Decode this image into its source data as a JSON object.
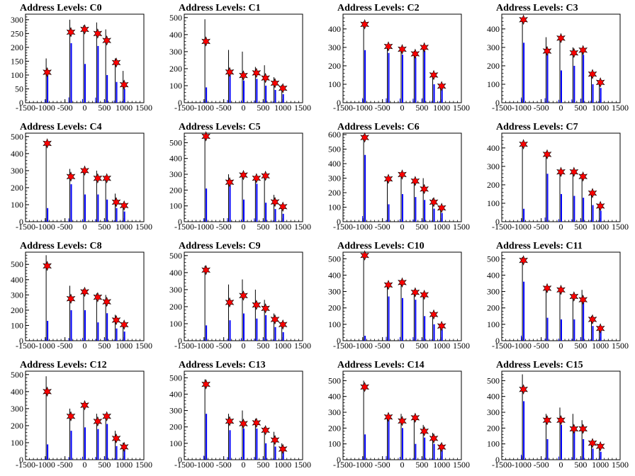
{
  "colors": {
    "histogram": "#0000ff",
    "spike": "#000000",
    "marker": "#ff0000",
    "axis": "#000000"
  },
  "chart_data": [
    {
      "type": "bar",
      "title": "Address Levels: C0",
      "xlim": [
        -1500,
        1500
      ],
      "ylim": [
        0,
        320
      ],
      "yticks": [
        0,
        50,
        100,
        150,
        200,
        250,
        300
      ],
      "xticks": [
        -1500,
        -1000,
        -500,
        0,
        500,
        1000,
        1500
      ],
      "peaks": [
        {
          "x": -950,
          "bar": 100,
          "spike": 160,
          "marker": 110
        },
        {
          "x": -350,
          "bar": 215,
          "spike": 300,
          "marker": 255
        },
        {
          "x": 0,
          "bar": 140,
          "spike": 280,
          "marker": 265
        },
        {
          "x": 330,
          "bar": 205,
          "spike": 290,
          "marker": 250
        },
        {
          "x": 560,
          "bar": 100,
          "spike": 265,
          "marker": 225
        },
        {
          "x": 800,
          "bar": 75,
          "spike": 160,
          "marker": 145
        },
        {
          "x": 1000,
          "bar": 50,
          "spike": 115,
          "marker": 65
        }
      ]
    },
    {
      "type": "bar",
      "title": "Address Levels: C1",
      "xlim": [
        -1500,
        1500
      ],
      "ylim": [
        0,
        520
      ],
      "yticks": [
        0,
        100,
        200,
        300,
        400,
        500
      ],
      "xticks": [
        -1500,
        -1000,
        -500,
        0,
        500,
        1000,
        1500
      ],
      "peaks": [
        {
          "x": -950,
          "bar": 90,
          "spike": 490,
          "marker": 360
        },
        {
          "x": -350,
          "bar": 180,
          "spike": 310,
          "marker": 180
        },
        {
          "x": 0,
          "bar": 130,
          "spike": 300,
          "marker": 160
        },
        {
          "x": 330,
          "bar": 140,
          "spike": 210,
          "marker": 175
        },
        {
          "x": 560,
          "bar": 100,
          "spike": 220,
          "marker": 145
        },
        {
          "x": 800,
          "bar": 75,
          "spike": 150,
          "marker": 115
        },
        {
          "x": 1000,
          "bar": 50,
          "spike": 105,
          "marker": 85
        }
      ]
    },
    {
      "type": "bar",
      "title": "Address Levels: C2",
      "xlim": [
        -1500,
        1500
      ],
      "ylim": [
        0,
        480
      ],
      "yticks": [
        0,
        100,
        200,
        300,
        400
      ],
      "xticks": [
        -1500,
        -1000,
        -500,
        0,
        500,
        1000,
        1500
      ],
      "peaks": [
        {
          "x": -950,
          "bar": 285,
          "spike": 440,
          "marker": 425
        },
        {
          "x": -350,
          "bar": 270,
          "spike": 310,
          "marker": 305
        },
        {
          "x": 0,
          "bar": 260,
          "spike": 295,
          "marker": 290
        },
        {
          "x": 330,
          "bar": 245,
          "spike": 280,
          "marker": 265
        },
        {
          "x": 560,
          "bar": 280,
          "spike": 310,
          "marker": 300
        },
        {
          "x": 800,
          "bar": 100,
          "spike": 160,
          "marker": 150
        },
        {
          "x": 1000,
          "bar": 80,
          "spike": 100,
          "marker": 90
        }
      ]
    },
    {
      "type": "bar",
      "title": "Address Levels: C3",
      "xlim": [
        -1500,
        1500
      ],
      "ylim": [
        0,
        480
      ],
      "yticks": [
        0,
        100,
        200,
        300,
        400
      ],
      "xticks": [
        -1500,
        -1000,
        -500,
        0,
        500,
        1000,
        1500
      ],
      "peaks": [
        {
          "x": -950,
          "bar": 325,
          "spike": 460,
          "marker": 450
        },
        {
          "x": -350,
          "bar": 280,
          "spike": 355,
          "marker": 280
        },
        {
          "x": 0,
          "bar": 175,
          "spike": 360,
          "marker": 350
        },
        {
          "x": 330,
          "bar": 200,
          "spike": 300,
          "marker": 270
        },
        {
          "x": 560,
          "bar": 260,
          "spike": 295,
          "marker": 285
        },
        {
          "x": 800,
          "bar": 100,
          "spike": 165,
          "marker": 155
        },
        {
          "x": 1000,
          "bar": 80,
          "spike": 120,
          "marker": 110
        }
      ]
    },
    {
      "type": "bar",
      "title": "Address Levels: C4",
      "xlim": [
        -1500,
        1500
      ],
      "ylim": [
        0,
        520
      ],
      "yticks": [
        0,
        100,
        200,
        300,
        400,
        500
      ],
      "xticks": [
        -1500,
        -1000,
        -500,
        0,
        500,
        1000,
        1500
      ],
      "peaks": [
        {
          "x": -950,
          "bar": 80,
          "spike": 470,
          "marker": 460
        },
        {
          "x": -350,
          "bar": 220,
          "spike": 310,
          "marker": 265
        },
        {
          "x": 0,
          "bar": 160,
          "spike": 310,
          "marker": 300
        },
        {
          "x": 330,
          "bar": 160,
          "spike": 300,
          "marker": 255
        },
        {
          "x": 560,
          "bar": 130,
          "spike": 270,
          "marker": 255
        },
        {
          "x": 800,
          "bar": 80,
          "spike": 165,
          "marker": 115
        },
        {
          "x": 1000,
          "bar": 60,
          "spike": 110,
          "marker": 95
        }
      ]
    },
    {
      "type": "bar",
      "title": "Address Levels: C5",
      "xlim": [
        -1500,
        1500
      ],
      "ylim": [
        0,
        560
      ],
      "yticks": [
        0,
        100,
        200,
        300,
        400,
        500
      ],
      "xticks": [
        -1500,
        -1000,
        -500,
        0,
        500,
        1000,
        1500
      ],
      "peaks": [
        {
          "x": -950,
          "bar": 210,
          "spike": 550,
          "marker": 540
        },
        {
          "x": -350,
          "bar": 260,
          "spike": 300,
          "marker": 250
        },
        {
          "x": 0,
          "bar": 140,
          "spike": 310,
          "marker": 295
        },
        {
          "x": 330,
          "bar": 240,
          "spike": 285,
          "marker": 275
        },
        {
          "x": 560,
          "bar": 120,
          "spike": 300,
          "marker": 290
        },
        {
          "x": 800,
          "bar": 80,
          "spike": 170,
          "marker": 125
        },
        {
          "x": 1000,
          "bar": 50,
          "spike": 110,
          "marker": 95
        }
      ]
    },
    {
      "type": "bar",
      "title": "Address Levels: C6",
      "xlim": [
        -1500,
        1500
      ],
      "ylim": [
        0,
        610
      ],
      "yticks": [
        0,
        100,
        200,
        300,
        400,
        500,
        600
      ],
      "xticks": [
        -1500,
        -1000,
        -500,
        0,
        500,
        1000,
        1500
      ],
      "peaks": [
        {
          "x": -950,
          "bar": 460,
          "spike": 600,
          "marker": 580
        },
        {
          "x": -350,
          "bar": 120,
          "spike": 310,
          "marker": 295
        },
        {
          "x": 0,
          "bar": 190,
          "spike": 340,
          "marker": 325
        },
        {
          "x": 330,
          "bar": 170,
          "spike": 290,
          "marker": 280
        },
        {
          "x": 560,
          "bar": 150,
          "spike": 300,
          "marker": 225
        },
        {
          "x": 800,
          "bar": 90,
          "spike": 160,
          "marker": 135
        },
        {
          "x": 1000,
          "bar": 60,
          "spike": 110,
          "marker": 95
        }
      ]
    },
    {
      "type": "bar",
      "title": "Address Levels: C7",
      "xlim": [
        -1500,
        1500
      ],
      "ylim": [
        0,
        480
      ],
      "yticks": [
        0,
        100,
        200,
        300,
        400
      ],
      "xticks": [
        -1500,
        -1000,
        -500,
        0,
        500,
        1000,
        1500
      ],
      "peaks": [
        {
          "x": -950,
          "bar": 70,
          "spike": 430,
          "marker": 420
        },
        {
          "x": -350,
          "bar": 260,
          "spike": 380,
          "marker": 365
        },
        {
          "x": 0,
          "bar": 150,
          "spike": 280,
          "marker": 270
        },
        {
          "x": 330,
          "bar": 140,
          "spike": 280,
          "marker": 270
        },
        {
          "x": 560,
          "bar": 130,
          "spike": 260,
          "marker": 245
        },
        {
          "x": 800,
          "bar": 90,
          "spike": 160,
          "marker": 155
        },
        {
          "x": 1000,
          "bar": 60,
          "spike": 90,
          "marker": 85
        }
      ]
    },
    {
      "type": "bar",
      "title": "Address Levels: C8",
      "xlim": [
        -1500,
        1500
      ],
      "ylim": [
        0,
        580
      ],
      "yticks": [
        0,
        100,
        200,
        300,
        400,
        500
      ],
      "xticks": [
        -1500,
        -1000,
        -500,
        0,
        500,
        1000,
        1500
      ],
      "peaks": [
        {
          "x": -950,
          "bar": 130,
          "spike": 560,
          "marker": 490
        },
        {
          "x": -350,
          "bar": 200,
          "spike": 360,
          "marker": 275
        },
        {
          "x": 0,
          "bar": 200,
          "spike": 340,
          "marker": 320
        },
        {
          "x": 330,
          "bar": 120,
          "spike": 310,
          "marker": 285
        },
        {
          "x": 560,
          "bar": 180,
          "spike": 300,
          "marker": 255
        },
        {
          "x": 800,
          "bar": 80,
          "spike": 170,
          "marker": 135
        },
        {
          "x": 1000,
          "bar": 60,
          "spike": 110,
          "marker": 105
        }
      ]
    },
    {
      "type": "bar",
      "title": "Address Levels: C9",
      "xlim": [
        -1500,
        1500
      ],
      "ylim": [
        0,
        520
      ],
      "yticks": [
        0,
        100,
        200,
        300,
        400,
        500
      ],
      "xticks": [
        -1500,
        -1000,
        -500,
        0,
        500,
        1000,
        1500
      ],
      "peaks": [
        {
          "x": -950,
          "bar": 90,
          "spike": 440,
          "marker": 415
        },
        {
          "x": -350,
          "bar": 120,
          "spike": 330,
          "marker": 225
        },
        {
          "x": 0,
          "bar": 160,
          "spike": 360,
          "marker": 265
        },
        {
          "x": 330,
          "bar": 130,
          "spike": 300,
          "marker": 210
        },
        {
          "x": 560,
          "bar": 150,
          "spike": 240,
          "marker": 190
        },
        {
          "x": 800,
          "bar": 80,
          "spike": 160,
          "marker": 125
        },
        {
          "x": 1000,
          "bar": 50,
          "spike": 110,
          "marker": 95
        }
      ]
    },
    {
      "type": "bar",
      "title": "Address Levels: C10",
      "xlim": [
        -1500,
        1500
      ],
      "ylim": [
        0,
        540
      ],
      "yticks": [
        0,
        100,
        200,
        300,
        400,
        500
      ],
      "xticks": [
        -1500,
        -1000,
        -500,
        0,
        500,
        1000,
        1500
      ],
      "peaks": [
        {
          "x": -950,
          "bar": 30,
          "spike": 530,
          "marker": 520
        },
        {
          "x": -350,
          "bar": 270,
          "spike": 350,
          "marker": 340
        },
        {
          "x": 0,
          "bar": 260,
          "spike": 370,
          "marker": 355
        },
        {
          "x": 330,
          "bar": 250,
          "spike": 310,
          "marker": 295
        },
        {
          "x": 560,
          "bar": 150,
          "spike": 290,
          "marker": 280
        },
        {
          "x": 800,
          "bar": 100,
          "spike": 170,
          "marker": 160
        },
        {
          "x": 1000,
          "bar": 70,
          "spike": 100,
          "marker": 90
        }
      ]
    },
    {
      "type": "bar",
      "title": "Address Levels: C11",
      "xlim": [
        -1500,
        1500
      ],
      "ylim": [
        0,
        540
      ],
      "yticks": [
        0,
        100,
        200,
        300,
        400,
        500
      ],
      "xticks": [
        -1500,
        -1000,
        -500,
        0,
        500,
        1000,
        1500
      ],
      "peaks": [
        {
          "x": -950,
          "bar": 360,
          "spike": 510,
          "marker": 490
        },
        {
          "x": -350,
          "bar": 140,
          "spike": 330,
          "marker": 320
        },
        {
          "x": 0,
          "bar": 130,
          "spike": 320,
          "marker": 310
        },
        {
          "x": 330,
          "bar": 130,
          "spike": 280,
          "marker": 270
        },
        {
          "x": 560,
          "bar": 250,
          "spike": 310,
          "marker": 250
        },
        {
          "x": 800,
          "bar": 90,
          "spike": 150,
          "marker": 130
        },
        {
          "x": 1000,
          "bar": 60,
          "spike": 90,
          "marker": 75
        }
      ]
    },
    {
      "type": "bar",
      "title": "Address Levels: C12",
      "xlim": [
        -1500,
        1500
      ],
      "ylim": [
        0,
        520
      ],
      "yticks": [
        0,
        100,
        200,
        300,
        400,
        500
      ],
      "xticks": [
        -1500,
        -1000,
        -500,
        0,
        500,
        1000,
        1500
      ],
      "peaks": [
        {
          "x": -950,
          "bar": 90,
          "spike": 490,
          "marker": 400
        },
        {
          "x": -350,
          "bar": 170,
          "spike": 300,
          "marker": 255
        },
        {
          "x": 0,
          "bar": 190,
          "spike": 330,
          "marker": 320
        },
        {
          "x": 330,
          "bar": 180,
          "spike": 270,
          "marker": 225
        },
        {
          "x": 560,
          "bar": 210,
          "spike": 270,
          "marker": 255
        },
        {
          "x": 800,
          "bar": 80,
          "spike": 170,
          "marker": 125
        },
        {
          "x": 1000,
          "bar": 60,
          "spike": 100,
          "marker": 75
        }
      ]
    },
    {
      "type": "bar",
      "title": "Address Levels: C13",
      "xlim": [
        -1500,
        1500
      ],
      "ylim": [
        0,
        540
      ],
      "yticks": [
        0,
        100,
        200,
        300,
        400,
        500
      ],
      "xticks": [
        -1500,
        -1000,
        -500,
        0,
        500,
        1000,
        1500
      ],
      "peaks": [
        {
          "x": -950,
          "bar": 280,
          "spike": 490,
          "marker": 460
        },
        {
          "x": -350,
          "bar": 180,
          "spike": 280,
          "marker": 235
        },
        {
          "x": 0,
          "bar": 190,
          "spike": 300,
          "marker": 220
        },
        {
          "x": 330,
          "bar": 190,
          "spike": 250,
          "marker": 225
        },
        {
          "x": 560,
          "bar": 100,
          "spike": 200,
          "marker": 180
        },
        {
          "x": 800,
          "bar": 80,
          "spike": 170,
          "marker": 120
        },
        {
          "x": 1000,
          "bar": 50,
          "spike": 100,
          "marker": 65
        }
      ]
    },
    {
      "type": "bar",
      "title": "Address Levels: C14",
      "xlim": [
        -1500,
        1500
      ],
      "ylim": [
        0,
        560
      ],
      "yticks": [
        0,
        100,
        200,
        300,
        400,
        500
      ],
      "xticks": [
        -1500,
        -1000,
        -500,
        0,
        500,
        1000,
        1500
      ],
      "peaks": [
        {
          "x": -950,
          "bar": 160,
          "spike": 500,
          "marker": 460
        },
        {
          "x": -350,
          "bar": 260,
          "spike": 280,
          "marker": 270
        },
        {
          "x": 0,
          "bar": 200,
          "spike": 290,
          "marker": 245
        },
        {
          "x": 330,
          "bar": 100,
          "spike": 280,
          "marker": 265
        },
        {
          "x": 560,
          "bar": 140,
          "spike": 220,
          "marker": 180
        },
        {
          "x": 800,
          "bar": 100,
          "spike": 170,
          "marker": 135
        },
        {
          "x": 1000,
          "bar": 60,
          "spike": 100,
          "marker": 80
        }
      ]
    },
    {
      "type": "bar",
      "title": "Address Levels: C15",
      "xlim": [
        -1500,
        1500
      ],
      "ylim": [
        0,
        560
      ],
      "yticks": [
        0,
        100,
        200,
        300,
        400,
        500
      ],
      "xticks": [
        -1500,
        -1000,
        -500,
        0,
        500,
        1000,
        1500
      ],
      "peaks": [
        {
          "x": -950,
          "bar": 370,
          "spike": 540,
          "marker": 445
        },
        {
          "x": -350,
          "bar": 130,
          "spike": 290,
          "marker": 250
        },
        {
          "x": 0,
          "bar": 220,
          "spike": 330,
          "marker": 250
        },
        {
          "x": 330,
          "bar": 180,
          "spike": 290,
          "marker": 195
        },
        {
          "x": 560,
          "bar": 130,
          "spike": 250,
          "marker": 195
        },
        {
          "x": 800,
          "bar": 70,
          "spike": 120,
          "marker": 105
        },
        {
          "x": 1000,
          "bar": 50,
          "spike": 90,
          "marker": 85
        }
      ]
    }
  ]
}
